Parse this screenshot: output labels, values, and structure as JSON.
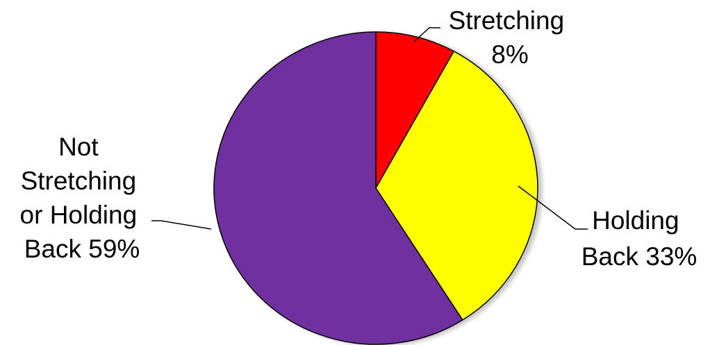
{
  "chart_data": {
    "type": "pie",
    "categories": [
      "Stretching",
      "Holding Back",
      "Not Stretching or Holding Back"
    ],
    "values": [
      8,
      33,
      59
    ],
    "colors": [
      "#ff0000",
      "#ffff00",
      "#7030a0"
    ],
    "labels": [
      {
        "lines": [
          "Stretching",
          "8%"
        ]
      },
      {
        "lines": [
          "Holding",
          "Back 33%"
        ]
      },
      {
        "lines": [
          "Not",
          "Stretching",
          "or Holding",
          "Back  59%"
        ]
      }
    ],
    "legend": "none"
  }
}
